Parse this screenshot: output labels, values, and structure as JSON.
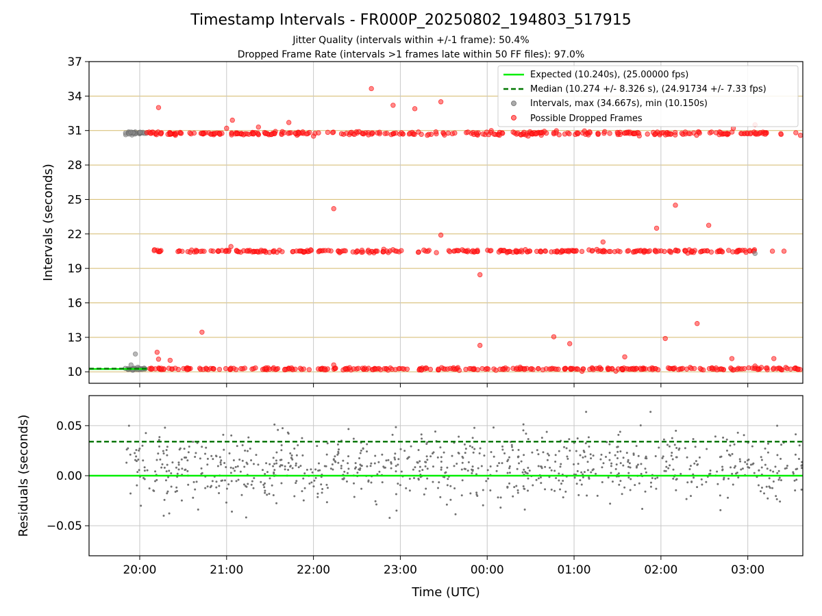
{
  "figure": {
    "title": "Timestamp Intervals - FR000P_20250802_194803_517915",
    "subtitle_1": "Jitter Quality (intervals within +/-1 frame): 50.4%",
    "subtitle_2": "Dropped Frame Rate (intervals >1 frames late within 50 FF files): 97.0%"
  },
  "colors": {
    "expected": "#00ee00",
    "median": "#007700",
    "intervals": "#888888",
    "dropped": "#ff2a2a",
    "dropped_edge": "#ff0000",
    "hgrid": "#d4b96a",
    "vgrid": "#c8c8c8",
    "residual_points": "#707070",
    "text": "#000000"
  },
  "chart_data": [
    {
      "id": "intervals",
      "type": "scatter",
      "xlabel": "",
      "ylabel": "Intervals (seconds)",
      "xlim": [
        "19:25",
        "03:38"
      ],
      "ylim": [
        9,
        37
      ],
      "yticks": [
        10,
        13,
        16,
        19,
        22,
        25,
        28,
        31,
        34,
        37
      ],
      "xticks": [
        "20:00",
        "21:00",
        "22:00",
        "23:00",
        "00:00",
        "01:00",
        "02:00",
        "03:00"
      ],
      "grid": {
        "horizontal": true,
        "vertical": true
      },
      "legend_position": "top-right",
      "expected_interval": 10.24,
      "median_interval": 10.274,
      "legend": {
        "expected": "Expected (10.240s), (25.00000 fps)",
        "median": "Median (10.274 +/- 8.326 s), (24.91734 +/- 7.33 fps)",
        "intervals": "Intervals, max (34.667s), min (10.150s)",
        "dropped": "Possible Dropped Frames"
      },
      "bands": [
        {
          "series": "dropped",
          "y": 10.26,
          "spread": 0.05,
          "start": "20:05",
          "end": "03:38",
          "count": 330
        },
        {
          "series": "dropped",
          "y": 20.5,
          "spread": 0.06,
          "start": "20:10",
          "end": "03:05",
          "count": 300
        },
        {
          "series": "dropped",
          "y": 30.75,
          "spread": 0.08,
          "start": "20:05",
          "end": "03:38",
          "count": 340
        },
        {
          "series": "intervals",
          "y": 30.8,
          "spread": 0.06,
          "start": "19:50",
          "end": "20:05",
          "count": 28
        },
        {
          "series": "intervals",
          "y": 10.25,
          "spread": 0.05,
          "start": "19:50",
          "end": "20:05",
          "count": 28
        }
      ],
      "intervals_points": [
        {
          "t": "19:54",
          "y": 10.6
        },
        {
          "t": "19:57",
          "y": 11.55
        },
        {
          "t": "19:55",
          "y": 10.15
        },
        {
          "t": "03:05",
          "y": 20.3
        }
      ],
      "dropped_points": [
        {
          "t": "20:13",
          "y": 33.0
        },
        {
          "t": "20:10",
          "y": 20.55
        },
        {
          "t": "20:12",
          "y": 11.7
        },
        {
          "t": "20:13",
          "y": 11.1
        },
        {
          "t": "20:21",
          "y": 11.0
        },
        {
          "t": "20:43",
          "y": 13.45
        },
        {
          "t": "21:00",
          "y": 31.2
        },
        {
          "t": "21:04",
          "y": 31.9
        },
        {
          "t": "21:03",
          "y": 20.9
        },
        {
          "t": "21:22",
          "y": 31.3
        },
        {
          "t": "21:43",
          "y": 31.7
        },
        {
          "t": "22:14",
          "y": 24.2
        },
        {
          "t": "22:14",
          "y": 10.6
        },
        {
          "t": "22:40",
          "y": 34.65
        },
        {
          "t": "22:55",
          "y": 33.2
        },
        {
          "t": "23:10",
          "y": 32.9
        },
        {
          "t": "23:28",
          "y": 21.9
        },
        {
          "t": "23:28",
          "y": 33.5
        },
        {
          "t": "23:55",
          "y": 18.45
        },
        {
          "t": "23:55",
          "y": 12.3
        },
        {
          "t": "00:46",
          "y": 13.05
        },
        {
          "t": "00:57",
          "y": 12.45
        },
        {
          "t": "01:20",
          "y": 21.3
        },
        {
          "t": "01:35",
          "y": 11.3
        },
        {
          "t": "01:57",
          "y": 22.5
        },
        {
          "t": "02:03",
          "y": 12.9
        },
        {
          "t": "02:10",
          "y": 24.5
        },
        {
          "t": "02:33",
          "y": 22.75
        },
        {
          "t": "02:25",
          "y": 14.2
        },
        {
          "t": "02:49",
          "y": 11.15
        },
        {
          "t": "03:05",
          "y": 10.5
        },
        {
          "t": "03:18",
          "y": 11.15
        },
        {
          "t": "03:05",
          "y": 31.5
        },
        {
          "t": "03:17",
          "y": 20.5
        },
        {
          "t": "03:25",
          "y": 20.5
        },
        {
          "t": "02:50",
          "y": 31.2
        }
      ]
    },
    {
      "id": "residuals",
      "type": "scatter",
      "xlabel": "Time (UTC)",
      "ylabel": "Residuals (seconds)",
      "xlim": [
        "19:25",
        "03:38"
      ],
      "ylim": [
        -0.08,
        0.08
      ],
      "yticks": [
        -0.05,
        0.0,
        0.05
      ],
      "ytick_labels": [
        "−0.05",
        "0.00",
        "0.05"
      ],
      "xticks": [
        "20:00",
        "21:00",
        "22:00",
        "23:00",
        "00:00",
        "01:00",
        "02:00",
        "03:00"
      ],
      "xtick_labels": [
        "20:00",
        "21:00",
        "22:00",
        "23:00",
        "00:00",
        "01:00",
        "02:00",
        "03:00"
      ],
      "grid": {
        "horizontal": true,
        "vertical": true
      },
      "expected_residual": 0.0,
      "median_residual": 0.034,
      "residual_cloud": {
        "start": "19:50",
        "end": "03:38",
        "count": 880,
        "center": 0.008,
        "sigma": 0.018,
        "clip": 0.078
      }
    }
  ]
}
